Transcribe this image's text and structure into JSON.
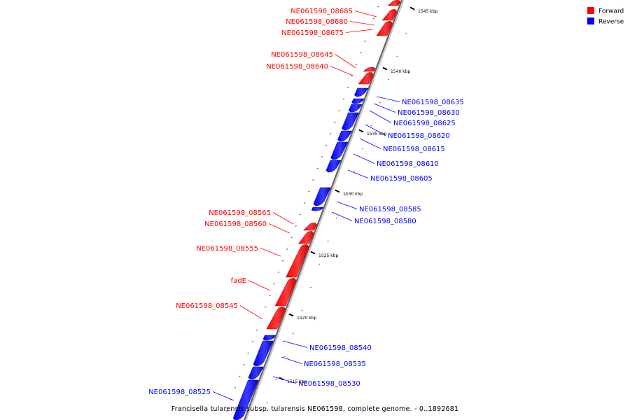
{
  "legend": {
    "forward_label": "Forward",
    "reverse_label": "Reverse",
    "forward_color": "#ff0000",
    "reverse_color": "#0000ff"
  },
  "caption": "Francisella tularensis subsp. tularensis NE061598, complete genome. - 0..1892681",
  "ticks": [
    {
      "label": "1515 kbp"
    },
    {
      "label": "1520 kbp"
    },
    {
      "label": "1525 kbp"
    },
    {
      "label": "1530 kbp"
    },
    {
      "label": "1535 kbp"
    },
    {
      "label": "1540 kbp"
    },
    {
      "label": "1545 kbp"
    }
  ],
  "genes": [
    {
      "name": "NE061598_08685",
      "strand": "forward"
    },
    {
      "name": "NE061598_08680",
      "strand": "forward"
    },
    {
      "name": "NE061598_08675",
      "strand": "forward"
    },
    {
      "name": "NE061598_08645",
      "strand": "forward"
    },
    {
      "name": "NE061598_08640",
      "strand": "forward"
    },
    {
      "name": "NE061598_08635",
      "strand": "reverse"
    },
    {
      "name": "NE061598_08630",
      "strand": "reverse"
    },
    {
      "name": "NE061598_08625",
      "strand": "reverse"
    },
    {
      "name": "NE061598_08620",
      "strand": "reverse"
    },
    {
      "name": "NE061598_08615",
      "strand": "reverse"
    },
    {
      "name": "NE061598_08610",
      "strand": "reverse"
    },
    {
      "name": "NE061598_08605",
      "strand": "reverse"
    },
    {
      "name": "NE061598_08585",
      "strand": "reverse"
    },
    {
      "name": "NE061598_08580",
      "strand": "reverse"
    },
    {
      "name": "NE061598_08565",
      "strand": "forward"
    },
    {
      "name": "NE061598_08560",
      "strand": "forward"
    },
    {
      "name": "NE061598_08555",
      "strand": "forward"
    },
    {
      "name": "fadE",
      "strand": "forward"
    },
    {
      "name": "NE061598_08545",
      "strand": "forward"
    },
    {
      "name": "NE061598_08540",
      "strand": "reverse"
    },
    {
      "name": "NE061598_08535",
      "strand": "reverse"
    },
    {
      "name": "NE061598_08530",
      "strand": "reverse"
    },
    {
      "name": "NE061598_08525",
      "strand": "reverse"
    }
  ]
}
